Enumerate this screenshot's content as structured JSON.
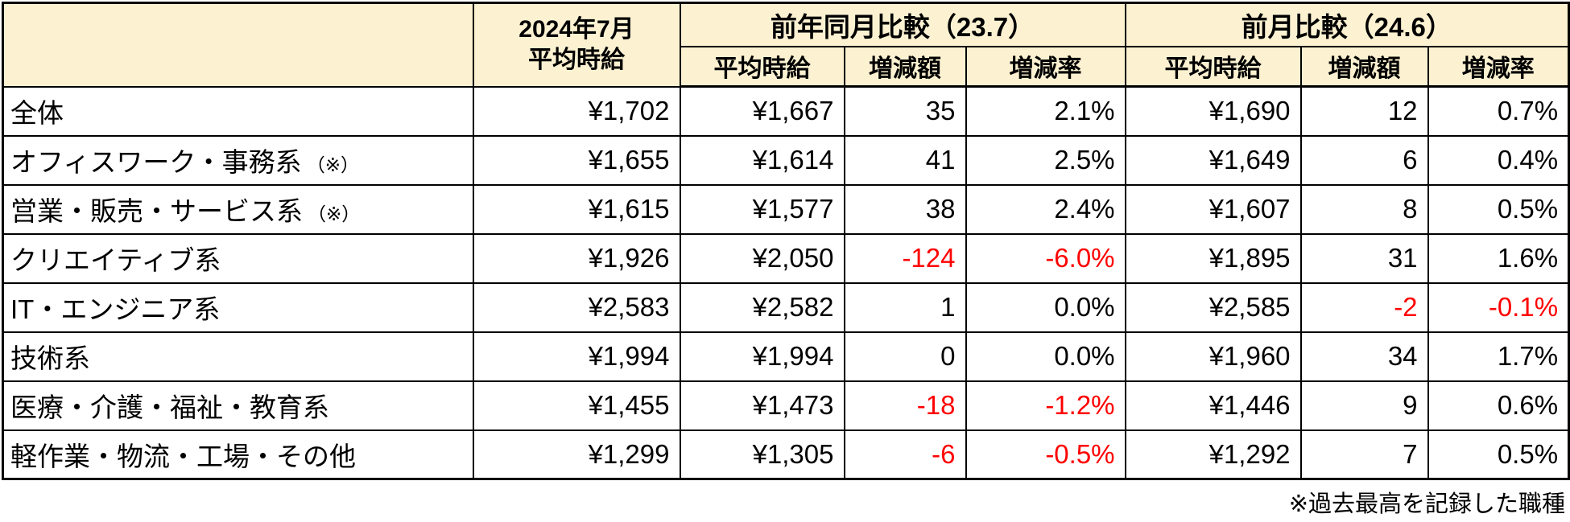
{
  "colors": {
    "header_bg": "#FCF2D2",
    "neg_color": "#FF0000",
    "border_color": "#000000"
  },
  "chart_data": {
    "type": "table",
    "header": {
      "period_label": [
        "2024年7月",
        "平均時給"
      ],
      "groups": [
        {
          "label": "前年同月比較（23.7）",
          "columns": [
            "平均時給",
            "増減額",
            "増減率"
          ]
        },
        {
          "label": "前月比較（24.6）",
          "columns": [
            "平均時給",
            "増減額",
            "増減率"
          ]
        }
      ]
    },
    "rows": [
      {
        "category": "全体",
        "note": "",
        "avg_2024_07": "¥1,702",
        "yoy": {
          "avg": "¥1,667",
          "diff": "35",
          "rate": "2.1%"
        },
        "mom": {
          "avg": "¥1,690",
          "diff": "12",
          "rate": "0.7%"
        }
      },
      {
        "category": "オフィスワーク・事務系",
        "note": "（※）",
        "avg_2024_07": "¥1,655",
        "yoy": {
          "avg": "¥1,614",
          "diff": "41",
          "rate": "2.5%"
        },
        "mom": {
          "avg": "¥1,649",
          "diff": "6",
          "rate": "0.4%"
        }
      },
      {
        "category": "営業・販売・サービス系",
        "note": "（※）",
        "avg_2024_07": "¥1,615",
        "yoy": {
          "avg": "¥1,577",
          "diff": "38",
          "rate": "2.4%"
        },
        "mom": {
          "avg": "¥1,607",
          "diff": "8",
          "rate": "0.5%"
        }
      },
      {
        "category": "クリエイティブ系",
        "note": "",
        "avg_2024_07": "¥1,926",
        "yoy": {
          "avg": "¥2,050",
          "diff": "-124",
          "rate": "-6.0%"
        },
        "mom": {
          "avg": "¥1,895",
          "diff": "31",
          "rate": "1.6%"
        }
      },
      {
        "category": "IT・エンジニア系",
        "note": "",
        "avg_2024_07": "¥2,583",
        "yoy": {
          "avg": "¥2,582",
          "diff": "1",
          "rate": "0.0%"
        },
        "mom": {
          "avg": "¥2,585",
          "diff": "-2",
          "rate": "-0.1%"
        }
      },
      {
        "category": "技術系",
        "note": "",
        "avg_2024_07": "¥1,994",
        "yoy": {
          "avg": "¥1,994",
          "diff": "0",
          "rate": "0.0%"
        },
        "mom": {
          "avg": "¥1,960",
          "diff": "34",
          "rate": "1.7%"
        }
      },
      {
        "category": "医療・介護・福祉・教育系",
        "note": "",
        "avg_2024_07": "¥1,455",
        "yoy": {
          "avg": "¥1,473",
          "diff": "-18",
          "rate": "-1.2%"
        },
        "mom": {
          "avg": "¥1,446",
          "diff": "9",
          "rate": "0.6%"
        }
      },
      {
        "category": "軽作業・物流・工場・その他",
        "note": "",
        "avg_2024_07": "¥1,299",
        "yoy": {
          "avg": "¥1,305",
          "diff": "-6",
          "rate": "-0.5%"
        },
        "mom": {
          "avg": "¥1,292",
          "diff": "7",
          "rate": "0.5%"
        }
      }
    ],
    "footnote": "※過去最高を記録した職種"
  }
}
